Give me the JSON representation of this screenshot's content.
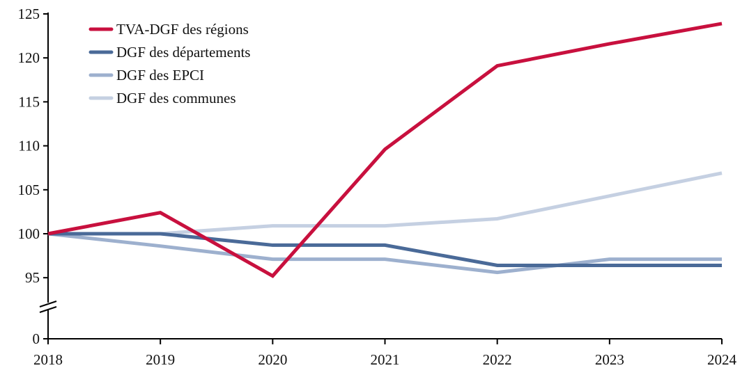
{
  "chart_data": {
    "type": "line",
    "title": "",
    "xlabel": "",
    "ylabel": "",
    "x": [
      2018,
      2019,
      2020,
      2021,
      2022,
      2023,
      2024
    ],
    "ylim": [
      95,
      125
    ],
    "y_axis_break": true,
    "y_ticks": [
      125,
      120,
      115,
      110,
      105,
      100,
      95
    ],
    "y_zero_label": "0",
    "grid": false,
    "legend_position": "top-left",
    "series": [
      {
        "name": "TVA-DGF des régions",
        "color": "#C8103E",
        "values": [
          100,
          102.4,
          95.2,
          109.6,
          119.1,
          121.6,
          123.9
        ]
      },
      {
        "name": "DGF des départements",
        "color": "#4A6A98",
        "values": [
          100,
          100,
          98.7,
          98.7,
          96.4,
          96.4,
          96.4
        ]
      },
      {
        "name": "DGF des EPCI",
        "color": "#9DB0CE",
        "values": [
          100,
          98.6,
          97.1,
          97.1,
          95.6,
          97.1,
          97.1
        ]
      },
      {
        "name": "DGF des communes",
        "color": "#C5D0E2",
        "values": [
          100,
          100,
          100.9,
          100.9,
          101.7,
          104.3,
          106.9
        ]
      }
    ]
  }
}
